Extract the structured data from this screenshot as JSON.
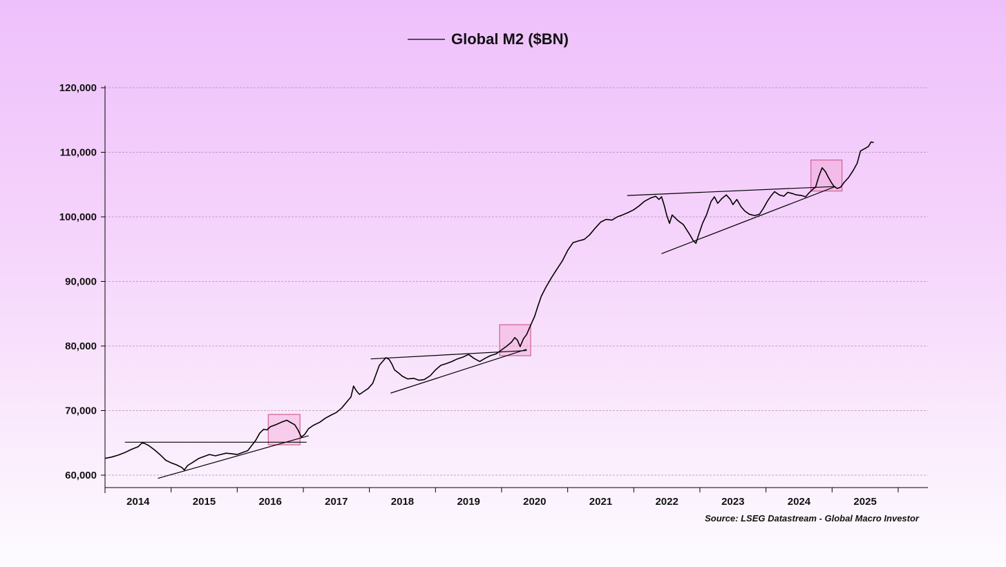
{
  "chart_data": {
    "type": "line",
    "title": "Global M2 ($BN)",
    "source": "Source: LSEG Datastream - Global Macro Investor",
    "xlabel": "",
    "ylabel": "",
    "ylim": [
      58000,
      120000
    ],
    "xlim": [
      2013.5,
      2025.95
    ],
    "y_ticks": [
      60000,
      70000,
      80000,
      90000,
      100000,
      110000,
      120000
    ],
    "y_tick_labels": [
      "60,000",
      "70,000",
      "80,000",
      "90,000",
      "100,000",
      "110,000",
      "120,000"
    ],
    "x_tick_labels": [
      "2014",
      "2015",
      "2016",
      "2017",
      "2018",
      "2019",
      "2020",
      "2021",
      "2022",
      "2023",
      "2024",
      "2025"
    ],
    "grid": true,
    "series": [
      {
        "name": "Global M2 ($BN)",
        "points": [
          [
            2013.5,
            62600
          ],
          [
            2013.6,
            62800
          ],
          [
            2013.7,
            63100
          ],
          [
            2013.8,
            63500
          ],
          [
            2013.9,
            64000
          ],
          [
            2014.0,
            64400
          ],
          [
            2014.06,
            65000
          ],
          [
            2014.1,
            64900
          ],
          [
            2014.16,
            64600
          ],
          [
            2014.25,
            63900
          ],
          [
            2014.33,
            63200
          ],
          [
            2014.42,
            62300
          ],
          [
            2014.5,
            61900
          ],
          [
            2014.58,
            61600
          ],
          [
            2014.66,
            61200
          ],
          [
            2014.7,
            60800
          ],
          [
            2014.75,
            61500
          ],
          [
            2014.83,
            62000
          ],
          [
            2014.92,
            62600
          ],
          [
            2015.0,
            62900
          ],
          [
            2015.08,
            63200
          ],
          [
            2015.17,
            63000
          ],
          [
            2015.25,
            63200
          ],
          [
            2015.33,
            63400
          ],
          [
            2015.42,
            63300
          ],
          [
            2015.5,
            63200
          ],
          [
            2015.58,
            63500
          ],
          [
            2015.66,
            63800
          ],
          [
            2015.72,
            64600
          ],
          [
            2015.78,
            65400
          ],
          [
            2015.84,
            66500
          ],
          [
            2015.9,
            67100
          ],
          [
            2015.95,
            67000
          ],
          [
            2016.0,
            67500
          ],
          [
            2016.08,
            67800
          ],
          [
            2016.17,
            68200
          ],
          [
            2016.25,
            68500
          ],
          [
            2016.3,
            68200
          ],
          [
            2016.37,
            67800
          ],
          [
            2016.42,
            67000
          ],
          [
            2016.47,
            65900
          ],
          [
            2016.52,
            66300
          ],
          [
            2016.58,
            67200
          ],
          [
            2016.65,
            67700
          ],
          [
            2016.75,
            68200
          ],
          [
            2016.83,
            68800
          ],
          [
            2016.92,
            69300
          ],
          [
            2017.0,
            69700
          ],
          [
            2017.08,
            70400
          ],
          [
            2017.17,
            71500
          ],
          [
            2017.22,
            72100
          ],
          [
            2017.26,
            73800
          ],
          [
            2017.3,
            73100
          ],
          [
            2017.35,
            72500
          ],
          [
            2017.42,
            73000
          ],
          [
            2017.48,
            73400
          ],
          [
            2017.55,
            74200
          ],
          [
            2017.6,
            75600
          ],
          [
            2017.65,
            77000
          ],
          [
            2017.7,
            77600
          ],
          [
            2017.75,
            78200
          ],
          [
            2017.8,
            77900
          ],
          [
            2017.84,
            77200
          ],
          [
            2017.88,
            76300
          ],
          [
            2017.93,
            75900
          ],
          [
            2018.0,
            75300
          ],
          [
            2018.08,
            74900
          ],
          [
            2018.17,
            75000
          ],
          [
            2018.25,
            74700
          ],
          [
            2018.33,
            74800
          ],
          [
            2018.42,
            75400
          ],
          [
            2018.5,
            76300
          ],
          [
            2018.58,
            77000
          ],
          [
            2018.67,
            77300
          ],
          [
            2018.75,
            77600
          ],
          [
            2018.83,
            78000
          ],
          [
            2018.92,
            78300
          ],
          [
            2019.0,
            78700
          ],
          [
            2019.08,
            78100
          ],
          [
            2019.17,
            77600
          ],
          [
            2019.25,
            78100
          ],
          [
            2019.33,
            78500
          ],
          [
            2019.42,
            78800
          ],
          [
            2019.5,
            79400
          ],
          [
            2019.58,
            80000
          ],
          [
            2019.65,
            80600
          ],
          [
            2019.7,
            81300
          ],
          [
            2019.74,
            80900
          ],
          [
            2019.78,
            79900
          ],
          [
            2019.83,
            81100
          ],
          [
            2019.88,
            81800
          ],
          [
            2019.93,
            83000
          ],
          [
            2019.97,
            83900
          ],
          [
            2020.0,
            84600
          ],
          [
            2020.05,
            86200
          ],
          [
            2020.1,
            87700
          ],
          [
            2020.17,
            89100
          ],
          [
            2020.25,
            90500
          ],
          [
            2020.33,
            91800
          ],
          [
            2020.42,
            93200
          ],
          [
            2020.5,
            94800
          ],
          [
            2020.58,
            96000
          ],
          [
            2020.67,
            96300
          ],
          [
            2020.75,
            96500
          ],
          [
            2020.83,
            97200
          ],
          [
            2020.92,
            98300
          ],
          [
            2021.0,
            99200
          ],
          [
            2021.08,
            99600
          ],
          [
            2021.17,
            99500
          ],
          [
            2021.25,
            100000
          ],
          [
            2021.33,
            100300
          ],
          [
            2021.42,
            100700
          ],
          [
            2021.5,
            101100
          ],
          [
            2021.58,
            101700
          ],
          [
            2021.66,
            102400
          ],
          [
            2021.75,
            102900
          ],
          [
            2021.83,
            103200
          ],
          [
            2021.88,
            102700
          ],
          [
            2021.92,
            103100
          ],
          [
            2021.96,
            101800
          ],
          [
            2022.0,
            100200
          ],
          [
            2022.04,
            99000
          ],
          [
            2022.08,
            100300
          ],
          [
            2022.13,
            99800
          ],
          [
            2022.17,
            99400
          ],
          [
            2022.25,
            98800
          ],
          [
            2022.3,
            98000
          ],
          [
            2022.35,
            97200
          ],
          [
            2022.4,
            96300
          ],
          [
            2022.44,
            95900
          ],
          [
            2022.48,
            97200
          ],
          [
            2022.54,
            99000
          ],
          [
            2022.6,
            100300
          ],
          [
            2022.67,
            102400
          ],
          [
            2022.72,
            103100
          ],
          [
            2022.77,
            102100
          ],
          [
            2022.83,
            102800
          ],
          [
            2022.9,
            103400
          ],
          [
            2022.96,
            102700
          ],
          [
            2023.0,
            101900
          ],
          [
            2023.06,
            102700
          ],
          [
            2023.12,
            101600
          ],
          [
            2023.18,
            100900
          ],
          [
            2023.25,
            100400
          ],
          [
            2023.33,
            100200
          ],
          [
            2023.4,
            100400
          ],
          [
            2023.46,
            101300
          ],
          [
            2023.52,
            102400
          ],
          [
            2023.58,
            103300
          ],
          [
            2023.63,
            103900
          ],
          [
            2023.7,
            103400
          ],
          [
            2023.77,
            103200
          ],
          [
            2023.83,
            103800
          ],
          [
            2023.9,
            103600
          ],
          [
            2023.96,
            103400
          ],
          [
            2024.04,
            103300
          ],
          [
            2024.1,
            103100
          ],
          [
            2024.15,
            103700
          ],
          [
            2024.2,
            104200
          ],
          [
            2024.25,
            104600
          ],
          [
            2024.3,
            106300
          ],
          [
            2024.35,
            107600
          ],
          [
            2024.4,
            107000
          ],
          [
            2024.45,
            106000
          ],
          [
            2024.49,
            105300
          ],
          [
            2024.53,
            104700
          ],
          [
            2024.58,
            104400
          ],
          [
            2024.63,
            104600
          ],
          [
            2024.68,
            105300
          ],
          [
            2024.75,
            106100
          ],
          [
            2024.82,
            107200
          ],
          [
            2024.88,
            108300
          ],
          [
            2024.93,
            110200
          ],
          [
            2025.0,
            110600
          ],
          [
            2025.05,
            110900
          ],
          [
            2025.09,
            111600
          ],
          [
            2025.13,
            111500
          ]
        ]
      }
    ],
    "trendlines": [
      {
        "from": [
          2013.8,
          65100
        ],
        "to": [
          2016.55,
          65100
        ]
      },
      {
        "from": [
          2014.3,
          59500
        ],
        "to": [
          2016.58,
          66100
        ]
      },
      {
        "from": [
          2017.52,
          78000
        ],
        "to": [
          2019.88,
          79300
        ]
      },
      {
        "from": [
          2017.82,
          72700
        ],
        "to": [
          2019.88,
          79500
        ]
      },
      {
        "from": [
          2021.4,
          103300
        ],
        "to": [
          2024.55,
          104700
        ]
      },
      {
        "from": [
          2021.92,
          94300
        ],
        "to": [
          2024.55,
          104700
        ]
      }
    ],
    "highlight_boxes": [
      {
        "x": [
          2015.97,
          2016.45
        ],
        "y": [
          64700,
          69400
        ]
      },
      {
        "x": [
          2019.47,
          2019.94
        ],
        "y": [
          78500,
          83300
        ]
      },
      {
        "x": [
          2024.18,
          2024.65
        ],
        "y": [
          104000,
          108800
        ]
      }
    ]
  }
}
